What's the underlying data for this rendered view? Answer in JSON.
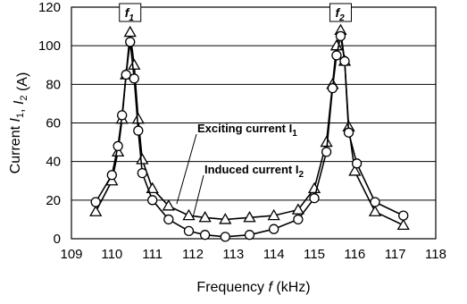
{
  "chart_data": {
    "type": "line",
    "xlabel": "Frequency  f (kHz)",
    "ylabel": "Current  I1, I2  (A)",
    "xlim": [
      109,
      118
    ],
    "ylim": [
      0,
      120
    ],
    "x_ticks": [
      "109",
      "110",
      "111",
      "112",
      "113",
      "114",
      "115",
      "116",
      "117",
      "118"
    ],
    "y_ticks": [
      "0",
      "20",
      "40",
      "60",
      "80",
      "100",
      "120"
    ],
    "grid": "horizontal",
    "markers_label_f1": "f1",
    "markers_label_f2": "f2",
    "series": [
      {
        "name": "Exciting current I1",
        "marker": "triangle",
        "points": [
          [
            109.6,
            14
          ],
          [
            110.0,
            30
          ],
          [
            110.15,
            45
          ],
          [
            110.25,
            62
          ],
          [
            110.35,
            85
          ],
          [
            110.45,
            107
          ],
          [
            110.55,
            90
          ],
          [
            110.65,
            62
          ],
          [
            110.75,
            41
          ],
          [
            111.0,
            26
          ],
          [
            111.4,
            17
          ],
          [
            111.9,
            12
          ],
          [
            112.3,
            11
          ],
          [
            112.8,
            10
          ],
          [
            113.4,
            11
          ],
          [
            114.0,
            12
          ],
          [
            114.6,
            15
          ],
          [
            115.0,
            26
          ],
          [
            115.3,
            50
          ],
          [
            115.45,
            80
          ],
          [
            115.55,
            100
          ],
          [
            115.65,
            108
          ],
          [
            115.75,
            92
          ],
          [
            115.85,
            58
          ],
          [
            116.0,
            35
          ],
          [
            116.5,
            14
          ],
          [
            117.2,
            7
          ]
        ]
      },
      {
        "name": "Induced current I2",
        "marker": "circle",
        "points": [
          [
            109.6,
            19
          ],
          [
            110.0,
            33
          ],
          [
            110.15,
            48
          ],
          [
            110.25,
            64
          ],
          [
            110.35,
            85
          ],
          [
            110.45,
            102
          ],
          [
            110.55,
            83
          ],
          [
            110.65,
            56
          ],
          [
            110.75,
            34
          ],
          [
            111.0,
            20
          ],
          [
            111.4,
            10
          ],
          [
            111.9,
            4
          ],
          [
            112.3,
            2
          ],
          [
            112.8,
            1
          ],
          [
            113.4,
            2
          ],
          [
            114.0,
            5
          ],
          [
            114.6,
            10
          ],
          [
            115.0,
            21
          ],
          [
            115.3,
            45
          ],
          [
            115.45,
            78
          ],
          [
            115.55,
            95
          ],
          [
            115.65,
            105
          ],
          [
            115.75,
            92
          ],
          [
            115.85,
            55
          ],
          [
            116.05,
            39
          ],
          [
            116.5,
            19
          ],
          [
            117.2,
            12
          ]
        ]
      }
    ],
    "annotations": [
      {
        "text": "Exciting  current  I1",
        "points_to": [
          111.6,
          18
        ]
      },
      {
        "text": "Induced current I2",
        "points_to": [
          112.0,
          11
        ]
      }
    ]
  }
}
